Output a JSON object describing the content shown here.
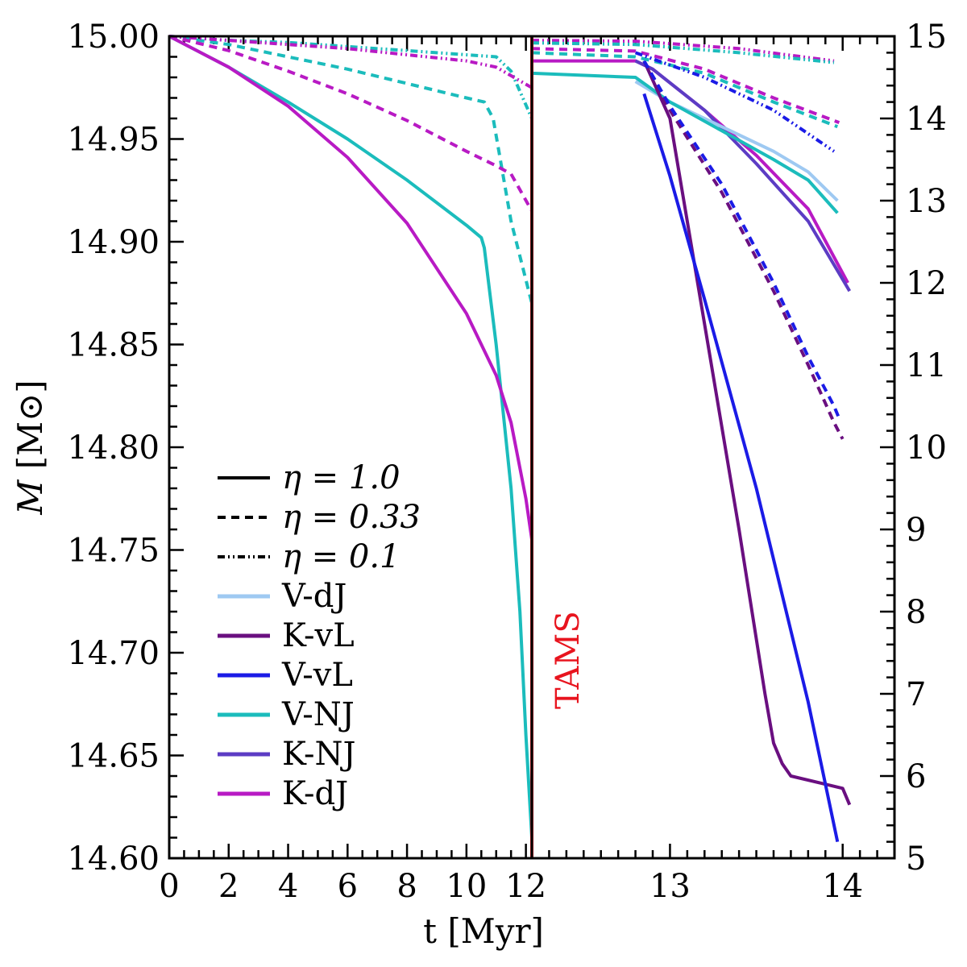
{
  "colors": {
    "V-dJ": "#9ec9f2",
    "K-vL": "#6a0f80",
    "V-vL": "#1b1be6",
    "V-NJ": "#1bbcbc",
    "K-NJ": "#5c3cc4",
    "K-dJ": "#b81ac4",
    "TAMS": "#e8141e"
  },
  "chart_data": {
    "type": "line",
    "panels": [
      {
        "name": "main_sequence",
        "xlim": [
          0,
          12.2
        ],
        "ylim": [
          14.6,
          15.0
        ],
        "x_ticks": [
          "0",
          "2",
          "4",
          "6",
          "8",
          "10",
          "12"
        ],
        "y_ticks": [
          "14.60",
          "14.65",
          "14.70",
          "14.75",
          "14.80",
          "14.85",
          "14.90",
          "14.95",
          "15.00"
        ]
      },
      {
        "name": "post_main_sequence",
        "xlim": [
          12.2,
          14.3
        ],
        "ylim": [
          5,
          15
        ],
        "x_ticks": [
          "13",
          "14"
        ],
        "y_ticks": [
          "5",
          "6",
          "7",
          "8",
          "9",
          "10",
          "11",
          "12",
          "13",
          "14",
          "15"
        ]
      }
    ],
    "xlabel": "t  [Myr]",
    "ylabel_symbol": "M",
    "ylabel_unit": "[M⊙]",
    "tams": {
      "x": 12.2,
      "label": "TAMS"
    },
    "legend": {
      "eta_entries": [
        {
          "label": "η = 1.0",
          "style": "solid"
        },
        {
          "label": "η = 0.33",
          "style": "dashed"
        },
        {
          "label": "η = 0.1",
          "style": "dashdot"
        }
      ],
      "model_entries": [
        "V-dJ",
        "K-vL",
        "V-vL",
        "V-NJ",
        "K-NJ",
        "K-dJ"
      ]
    },
    "series": [
      {
        "model": "V-NJ",
        "eta": 1.0,
        "panel": 0,
        "x": [
          0,
          2,
          4,
          6,
          8,
          10,
          10.5,
          10.6,
          11.0,
          11.5,
          11.8,
          12.0,
          12.2
        ],
        "y": [
          15.0,
          14.985,
          14.968,
          14.95,
          14.93,
          14.908,
          14.902,
          14.897,
          14.85,
          14.78,
          14.72,
          14.66,
          14.61
        ]
      },
      {
        "model": "K-dJ",
        "eta": 1.0,
        "panel": 0,
        "x": [
          0,
          2,
          4,
          6,
          8,
          10,
          11,
          11.5,
          12.0,
          12.2
        ],
        "y": [
          15.0,
          14.985,
          14.966,
          14.941,
          14.909,
          14.865,
          14.835,
          14.812,
          14.775,
          14.755
        ]
      },
      {
        "model": "V-NJ",
        "eta": 0.33,
        "panel": 0,
        "x": [
          0,
          2,
          4,
          6,
          8,
          10,
          10.6,
          10.9,
          11.5,
          12.2
        ],
        "y": [
          15.0,
          14.996,
          14.99,
          14.984,
          14.977,
          14.97,
          14.968,
          14.96,
          14.91,
          14.87
        ]
      },
      {
        "model": "K-dJ",
        "eta": 0.33,
        "panel": 0,
        "x": [
          0,
          2,
          4,
          6,
          8,
          10,
          11,
          11.5,
          12.2
        ],
        "y": [
          15.0,
          14.993,
          14.983,
          14.972,
          14.959,
          14.944,
          14.937,
          14.933,
          14.915
        ]
      },
      {
        "model": "V-NJ",
        "eta": 0.1,
        "panel": 0,
        "x": [
          0,
          2,
          4,
          6,
          8,
          10,
          11,
          11.5,
          12.2
        ],
        "y": [
          15.0,
          14.998,
          14.997,
          14.995,
          14.993,
          14.991,
          14.99,
          14.983,
          14.96
        ]
      },
      {
        "model": "K-dJ",
        "eta": 0.1,
        "panel": 0,
        "x": [
          0,
          2,
          4,
          6,
          8,
          10,
          11,
          12.2
        ],
        "y": [
          15.0,
          14.998,
          14.996,
          14.994,
          14.991,
          14.988,
          14.985,
          14.975
        ]
      },
      {
        "model": "K-dJ",
        "eta": 1.0,
        "panel": 1,
        "x": [
          12.2,
          12.8,
          12.9,
          13.2,
          13.5,
          13.8,
          14.03
        ],
        "y": [
          14.7,
          14.7,
          14.6,
          14.1,
          13.55,
          12.9,
          12.0
        ]
      },
      {
        "model": "K-NJ",
        "eta": 1.0,
        "panel": 1,
        "x": [
          12.8,
          12.9,
          13.2,
          13.5,
          13.8,
          14.04
        ],
        "y": [
          14.7,
          14.6,
          14.1,
          13.45,
          12.75,
          11.9
        ]
      },
      {
        "model": "V-dJ",
        "eta": 1.0,
        "panel": 1,
        "x": [
          12.8,
          13.0,
          13.3,
          13.6,
          13.8,
          13.97
        ],
        "y": [
          14.45,
          14.2,
          13.9,
          13.6,
          13.35,
          13.0
        ]
      },
      {
        "model": "V-NJ",
        "eta": 1.0,
        "panel": 1,
        "x": [
          12.2,
          12.8,
          13.0,
          13.3,
          13.6,
          13.8,
          13.97
        ],
        "y": [
          14.55,
          14.5,
          14.2,
          13.85,
          13.5,
          13.25,
          12.85
        ]
      },
      {
        "model": "K-vL",
        "eta": 1.0,
        "panel": 1,
        "x": [
          12.85,
          13.0,
          13.2,
          13.4,
          13.55,
          13.6,
          13.65,
          13.7,
          13.9,
          14.0,
          14.04
        ],
        "y": [
          14.7,
          14.0,
          11.5,
          9.0,
          7.0,
          6.4,
          6.15,
          6.0,
          5.9,
          5.85,
          5.65
        ]
      },
      {
        "model": "V-vL",
        "eta": 1.0,
        "panel": 1,
        "x": [
          12.85,
          13.0,
          13.2,
          13.5,
          13.8,
          13.97
        ],
        "y": [
          14.3,
          13.3,
          11.8,
          9.5,
          6.9,
          5.2
        ]
      },
      {
        "model": "K-vL",
        "eta": 0.33,
        "panel": 1,
        "x": [
          12.85,
          13.0,
          13.3,
          13.6,
          13.8,
          13.95,
          14.0
        ],
        "y": [
          14.7,
          14.1,
          13.1,
          11.9,
          11.0,
          10.3,
          10.1
        ]
      },
      {
        "model": "V-vL",
        "eta": 0.33,
        "panel": 1,
        "x": [
          12.85,
          13.0,
          13.3,
          13.6,
          13.8,
          13.95,
          13.98
        ],
        "y": [
          14.7,
          14.15,
          13.2,
          12.0,
          11.1,
          10.5,
          10.35
        ]
      },
      {
        "model": "K-dJ",
        "eta": 0.33,
        "panel": 1,
        "x": [
          12.2,
          12.8,
          13.2,
          13.6,
          13.98
        ],
        "y": [
          14.85,
          14.82,
          14.6,
          14.25,
          13.95
        ]
      },
      {
        "model": "V-NJ",
        "eta": 0.33,
        "panel": 1,
        "x": [
          12.2,
          12.8,
          13.2,
          13.6,
          13.97
        ],
        "y": [
          14.8,
          14.75,
          14.55,
          14.2,
          13.9
        ]
      },
      {
        "model": "V-vL",
        "eta": 0.1,
        "panel": 1,
        "x": [
          12.8,
          13.2,
          13.6,
          13.95
        ],
        "y": [
          14.8,
          14.5,
          14.1,
          13.6
        ]
      },
      {
        "model": "K-dJ",
        "eta": 0.1,
        "panel": 1,
        "x": [
          12.2,
          12.8,
          13.4,
          13.95
        ],
        "y": [
          14.95,
          14.94,
          14.85,
          14.7
        ]
      },
      {
        "model": "V-NJ",
        "eta": 0.1,
        "panel": 1,
        "x": [
          12.2,
          12.8,
          13.4,
          13.95
        ],
        "y": [
          14.92,
          14.9,
          14.8,
          14.68
        ]
      }
    ]
  }
}
